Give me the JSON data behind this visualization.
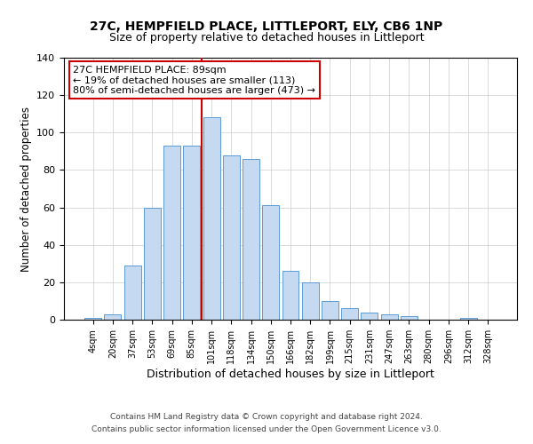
{
  "title": "27C, HEMPFIELD PLACE, LITTLEPORT, ELY, CB6 1NP",
  "subtitle": "Size of property relative to detached houses in Littleport",
  "xlabel": "Distribution of detached houses by size in Littleport",
  "ylabel": "Number of detached properties",
  "bar_labels": [
    "4sqm",
    "20sqm",
    "37sqm",
    "53sqm",
    "69sqm",
    "85sqm",
    "101sqm",
    "118sqm",
    "134sqm",
    "150sqm",
    "166sqm",
    "182sqm",
    "199sqm",
    "215sqm",
    "231sqm",
    "247sqm",
    "263sqm",
    "280sqm",
    "296sqm",
    "312sqm",
    "328sqm"
  ],
  "bar_values": [
    1,
    3,
    29,
    60,
    93,
    93,
    108,
    88,
    86,
    61,
    26,
    20,
    10,
    6,
    4,
    3,
    2,
    0,
    0,
    1,
    0
  ],
  "bar_color": "#c5d9f0",
  "bar_edge_color": "#5b9bd5",
  "vline_x": 5.5,
  "vline_color": "#cc0000",
  "annotation_title": "27C HEMPFIELD PLACE: 89sqm",
  "annotation_line1": "← 19% of detached houses are smaller (113)",
  "annotation_line2": "80% of semi-detached houses are larger (473) →",
  "annotation_box_color": "#ffffff",
  "annotation_box_edge": "#cc0000",
  "ylim": [
    0,
    140
  ],
  "yticks": [
    0,
    20,
    40,
    60,
    80,
    100,
    120,
    140
  ],
  "footer_line1": "Contains HM Land Registry data © Crown copyright and database right 2024.",
  "footer_line2": "Contains public sector information licensed under the Open Government Licence v3.0."
}
